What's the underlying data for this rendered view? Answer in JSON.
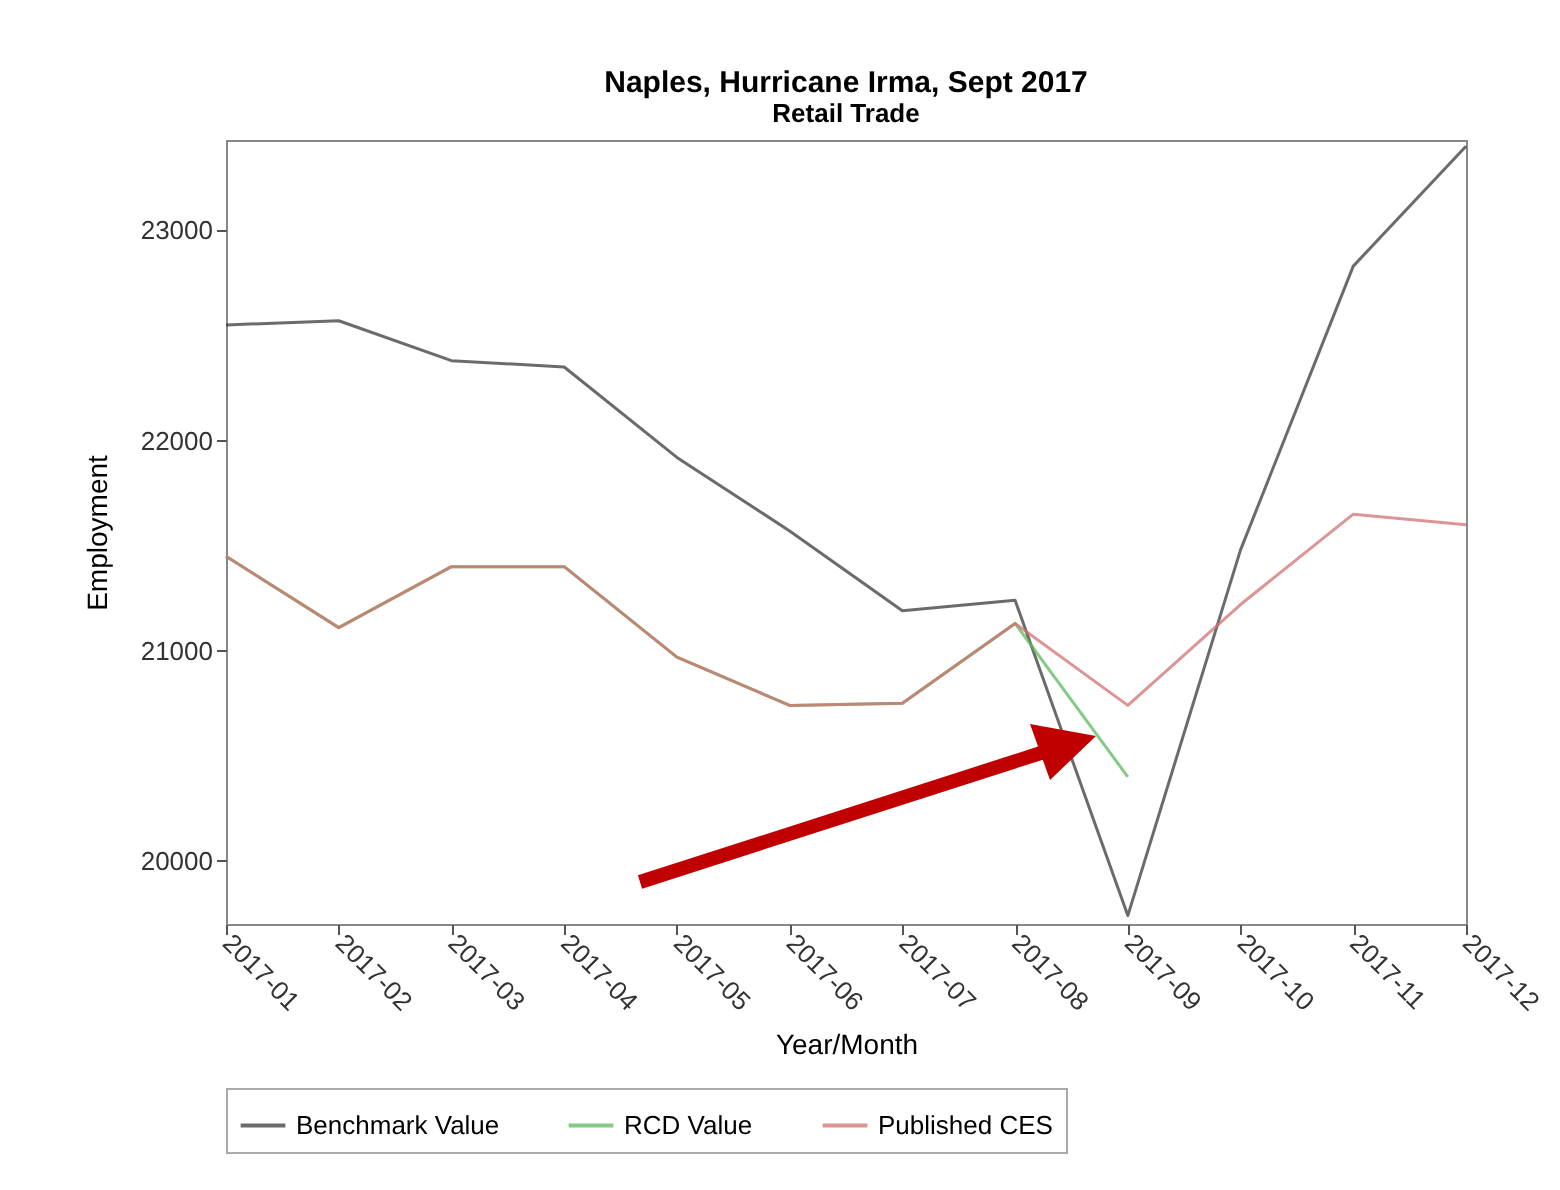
{
  "chart_data": {
    "type": "line",
    "title": "Naples, Hurricane Irma, Sept 2017",
    "subtitle": "Retail Trade",
    "xlabel": "Year/Month",
    "ylabel": "Employment",
    "categories": [
      "2017-01",
      "2017-02",
      "2017-03",
      "2017-04",
      "2017-05",
      "2017-06",
      "2017-07",
      "2017-08",
      "2017-09",
      "2017-10",
      "2017-11",
      "2017-12"
    ],
    "series": [
      {
        "name": "Benchmark Value",
        "color": "#3a3a3a",
        "values": [
          22550,
          22570,
          22380,
          22350,
          21920,
          21570,
          21190,
          21240,
          19740,
          21480,
          22830,
          23400
        ]
      },
      {
        "name": "RCD Value",
        "color": "#5cb85c",
        "values": [
          21450,
          21110,
          21400,
          21400,
          20970,
          20740,
          20750,
          21130,
          20400,
          null,
          null,
          null
        ]
      },
      {
        "name": "Published CES",
        "color": "#d07070",
        "values": [
          21450,
          21110,
          21400,
          21400,
          20970,
          20740,
          20750,
          21130,
          20740,
          21220,
          21650,
          21600
        ]
      }
    ],
    "ylim": [
      19700,
      23430
    ],
    "yticks": [
      20000,
      21000,
      22000,
      23000
    ],
    "grid": false,
    "legend": "bottom",
    "marker": "none",
    "line_style": "solid"
  }
}
